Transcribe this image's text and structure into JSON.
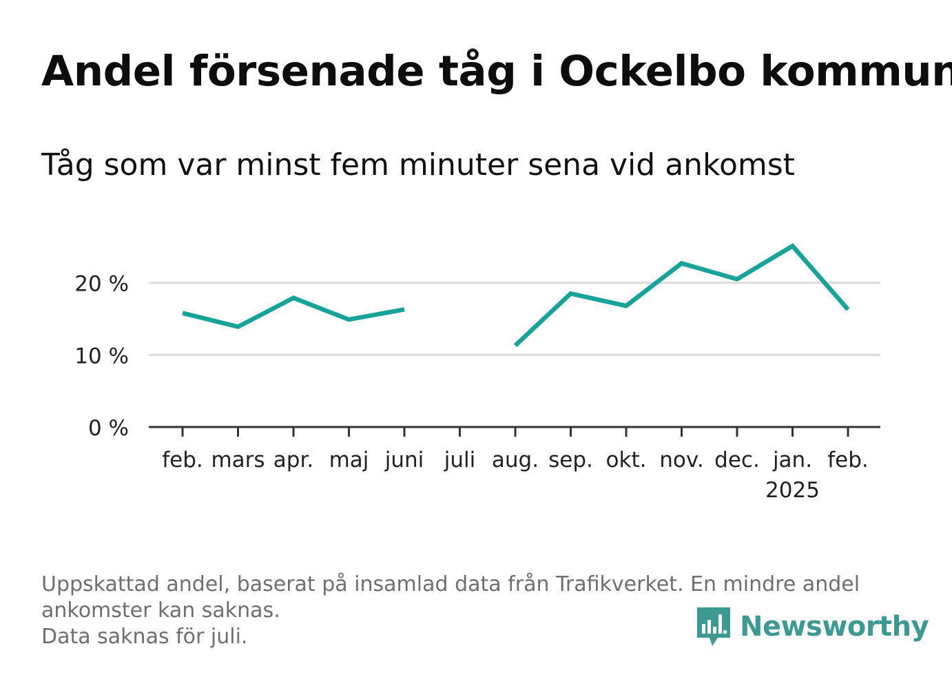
{
  "title": "Andel försenade tåg i Ockelbo kommun",
  "subtitle": "Tåg som var minst fem minuter sena vid ankomst",
  "footnote": {
    "line1": "Uppskattad andel, baserat på insamlad data från Trafikverket. En mindre andel",
    "line2": "ankomster kan saknas.",
    "line3": "Data saknas för juli."
  },
  "brand": {
    "name": "Newsworthy",
    "icon": "bar-chart-speech-bubble-icon",
    "color": "#3c9a93"
  },
  "chart_data": {
    "type": "line",
    "categories": [
      "feb.",
      "mars",
      "apr.",
      "maj",
      "juni",
      "juli",
      "aug.",
      "sep.",
      "okt.",
      "nov.",
      "dec.",
      "jan.",
      "feb."
    ],
    "year_label": "2025",
    "series": [
      {
        "values": [
          15.8,
          13.9,
          17.9,
          14.9,
          16.3,
          null,
          11.3,
          18.5,
          16.8,
          22.7,
          20.5,
          25.1,
          16.3
        ],
        "color": "#17a39a"
      }
    ],
    "yticks": [
      {
        "value": 0,
        "label": "0 %"
      },
      {
        "value": 10,
        "label": "10 %"
      },
      {
        "value": 20,
        "label": "20 %"
      }
    ],
    "ylim": [
      0,
      27
    ],
    "xlabel": "",
    "ylabel": "",
    "grid": true
  }
}
